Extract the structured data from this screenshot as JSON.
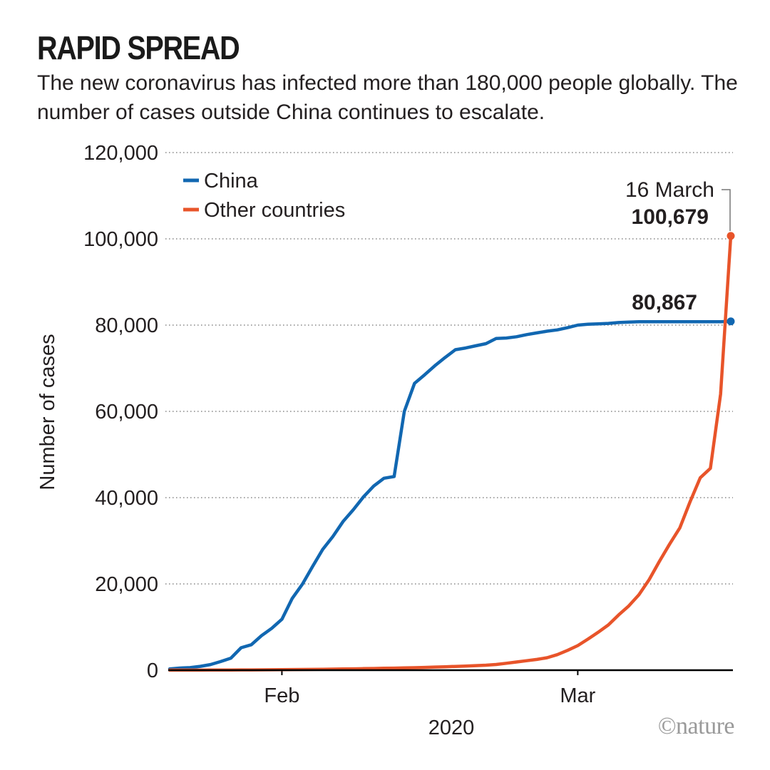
{
  "header": {
    "title": "RAPID SPREAD",
    "subtitle": "The new coronavirus has infected more than 180,000 people globally. The number of cases outside China continues to escalate."
  },
  "credit": "©nature",
  "colors": {
    "china": "#1167b1",
    "other": "#e8542a",
    "grid": "#6d6d6d",
    "axis": "#000000"
  },
  "chart_data": {
    "type": "line",
    "ylabel": "Number of cases",
    "xlabel": "2020",
    "ylim": [
      0,
      120000
    ],
    "yticks": [
      0,
      20000,
      40000,
      60000,
      80000,
      100000,
      120000
    ],
    "ytick_labels": [
      "0",
      "20,000",
      "40,000",
      "60,000",
      "80,000",
      "100,000",
      "120,000"
    ],
    "xlim": [
      "2020-01-21",
      "2020-03-16"
    ],
    "xticks": [
      {
        "date": "2020-02-01",
        "label": "Feb"
      },
      {
        "date": "2020-03-01",
        "label": "Mar"
      }
    ],
    "grid": "horizontal dotted",
    "legend": "top-left",
    "x": [
      "2020-01-21",
      "2020-01-22",
      "2020-01-23",
      "2020-01-24",
      "2020-01-25",
      "2020-01-26",
      "2020-01-27",
      "2020-01-28",
      "2020-01-29",
      "2020-01-30",
      "2020-01-31",
      "2020-02-01",
      "2020-02-02",
      "2020-02-03",
      "2020-02-04",
      "2020-02-05",
      "2020-02-06",
      "2020-02-07",
      "2020-02-08",
      "2020-02-09",
      "2020-02-10",
      "2020-02-11",
      "2020-02-12",
      "2020-02-13",
      "2020-02-14",
      "2020-02-15",
      "2020-02-16",
      "2020-02-17",
      "2020-02-18",
      "2020-02-19",
      "2020-02-20",
      "2020-02-21",
      "2020-02-22",
      "2020-02-23",
      "2020-02-24",
      "2020-02-25",
      "2020-02-26",
      "2020-02-27",
      "2020-02-28",
      "2020-02-29",
      "2020-03-01",
      "2020-03-02",
      "2020-03-03",
      "2020-03-04",
      "2020-03-05",
      "2020-03-06",
      "2020-03-07",
      "2020-03-08",
      "2020-03-09",
      "2020-03-10",
      "2020-03-11",
      "2020-03-12",
      "2020-03-13",
      "2020-03-14",
      "2020-03-15",
      "2020-03-16"
    ],
    "series": [
      {
        "name": "China",
        "values": [
          300,
          500,
          600,
          900,
          1300,
          2000,
          2800,
          5200,
          5900,
          8000,
          9700,
          11800,
          16600,
          19900,
          24000,
          28000,
          31000,
          34500,
          37200,
          40200,
          42700,
          44500,
          44900,
          60000,
          66500,
          68500,
          70600,
          72500,
          74300,
          74700,
          75200,
          75700,
          76900,
          77000,
          77300,
          77800,
          78200,
          78600,
          78900,
          79400,
          80000,
          80200,
          80300,
          80400,
          80600,
          80700,
          80800,
          80800,
          80800,
          80800,
          80800,
          80800,
          80800,
          80800,
          80800,
          80867
        ]
      },
      {
        "name": "Other countries",
        "values": [
          10,
          10,
          20,
          20,
          30,
          40,
          50,
          60,
          70,
          80,
          100,
          130,
          150,
          170,
          190,
          220,
          250,
          280,
          320,
          360,
          400,
          440,
          480,
          530,
          580,
          650,
          720,
          800,
          880,
          960,
          1050,
          1150,
          1330,
          1600,
          1900,
          2200,
          2500,
          2900,
          3600,
          4600,
          5700,
          7200,
          8800,
          10500,
          12800,
          14900,
          17500,
          21000,
          25200,
          29200,
          33000,
          39000,
          44600,
          46800,
          64000,
          100679
        ]
      }
    ],
    "annotations": {
      "date_label": "16 March",
      "other_end_label": "100,679",
      "china_end_label": "80,867"
    }
  }
}
